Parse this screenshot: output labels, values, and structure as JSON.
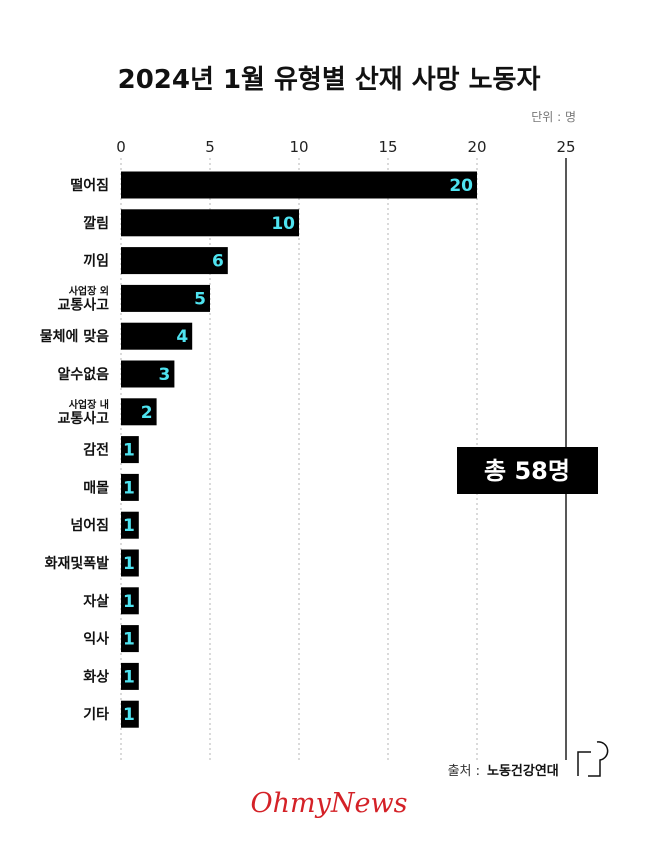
{
  "chart_data": {
    "type": "bar",
    "orientation": "horizontal",
    "title": "2024년 1월 유형별 산재 사망 노동자",
    "unit_label": "단위 : 명",
    "xlim": [
      0,
      25
    ],
    "xticks": [
      "0",
      "5",
      "10",
      "15",
      "20",
      "25"
    ],
    "grid": true,
    "categories": [
      [
        "떨어짐"
      ],
      [
        "깔림"
      ],
      [
        "끼임"
      ],
      [
        "사업장 외",
        "교통사고"
      ],
      [
        "물체에 맞음"
      ],
      [
        "알수없음"
      ],
      [
        "사업장 내",
        "교통사고"
      ],
      [
        "감전"
      ],
      [
        "매몰"
      ],
      [
        "넘어짐"
      ],
      [
        "화재및폭발"
      ],
      [
        "자살"
      ],
      [
        "익사"
      ],
      [
        "화상"
      ],
      [
        "기타"
      ]
    ],
    "values": [
      20,
      10,
      6,
      5,
      4,
      3,
      2,
      1,
      1,
      1,
      1,
      1,
      1,
      1,
      1
    ],
    "bar_color": "#000000",
    "label_color": "#4fe3f0"
  },
  "total_badge": "총 58명",
  "source": {
    "label": "출처 :",
    "name": "노동건강연대"
  },
  "brand": "OhmyNews",
  "brand_color": "#d42127"
}
